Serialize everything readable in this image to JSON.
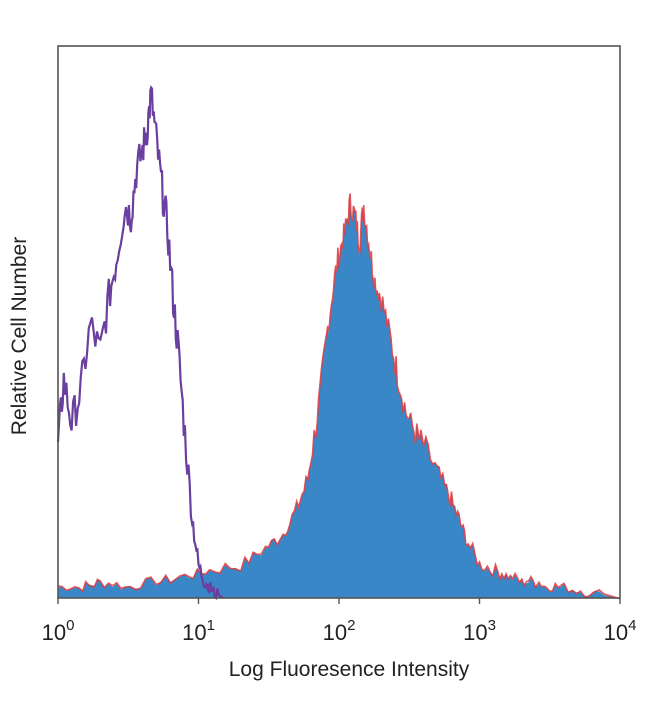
{
  "chart_data": {
    "type": "area",
    "xlabel": "Log Fluoresence Intensity",
    "ylabel": "Relative Cell Number",
    "x_scale": "log",
    "xlim": [
      1,
      10000
    ],
    "ylim": [
      0,
      100
    ],
    "x_ticks": [
      {
        "value": 1,
        "base": "10",
        "exp": "0"
      },
      {
        "value": 10,
        "base": "10",
        "exp": "1"
      },
      {
        "value": 100,
        "base": "10",
        "exp": "2"
      },
      {
        "value": 1000,
        "base": "10",
        "exp": "3"
      },
      {
        "value": 10000,
        "base": "10",
        "exp": "4"
      }
    ],
    "grid": false,
    "legend": "none",
    "series": [
      {
        "style": "filled-area",
        "color": "#3a87c8",
        "outline_color": "#e03a3e",
        "x": [
          1,
          1.5,
          2,
          3,
          5,
          8,
          12,
          20,
          30,
          40,
          50,
          60,
          70,
          80,
          90,
          100,
          110,
          120,
          130,
          140,
          150,
          165,
          180,
          200,
          230,
          260,
          300,
          350,
          400,
          500,
          600,
          700,
          800,
          1000,
          1300,
          1600,
          2000,
          2500,
          3000,
          4000,
          6000,
          10000
        ],
        "y": [
          2,
          2,
          3,
          2,
          3,
          4,
          5,
          6,
          9,
          12,
          16,
          22,
          33,
          46,
          56,
          63,
          67,
          72,
          70,
          65,
          72,
          64,
          58,
          55,
          48,
          41,
          34,
          30,
          28,
          23,
          19,
          15,
          11,
          6,
          5,
          4,
          3,
          3,
          2,
          2,
          1,
          0
        ]
      },
      {
        "style": "line",
        "color": "#6a3fa0",
        "x": [
          1,
          1.1,
          1.25,
          1.45,
          1.7,
          2.0,
          2.3,
          2.6,
          3.0,
          3.3,
          3.6,
          4.0,
          4.3,
          4.6,
          5.0,
          5.5,
          6.0,
          6.6,
          7.2,
          8.0,
          9.0,
          10.0,
          11.0,
          12.0,
          13.0,
          15.0
        ],
        "y": [
          28,
          40,
          32,
          38,
          50,
          45,
          55,
          62,
          72,
          70,
          78,
          82,
          86,
          92,
          84,
          75,
          68,
          55,
          45,
          30,
          15,
          6,
          3,
          2,
          1,
          0
        ]
      }
    ]
  }
}
